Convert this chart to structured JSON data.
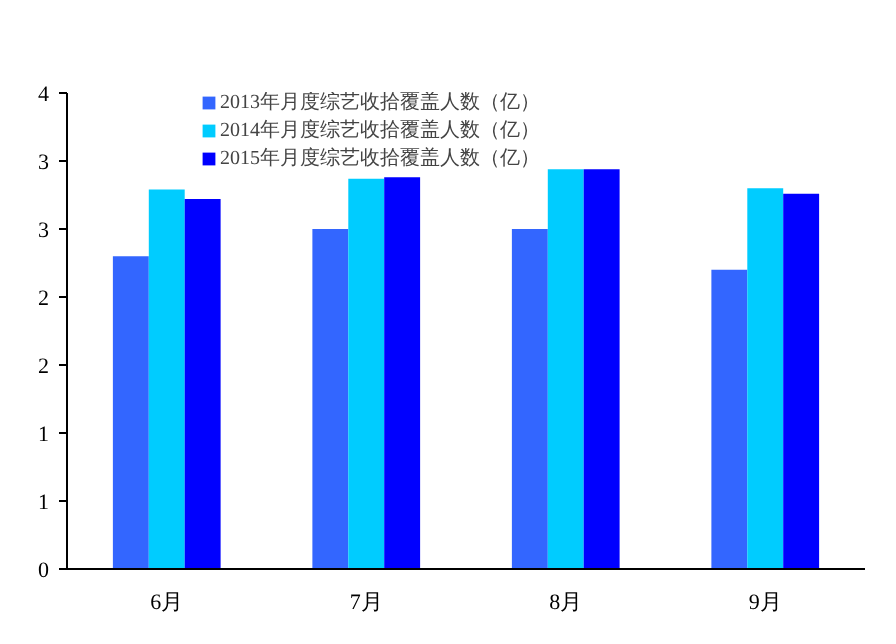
{
  "chart_data": {
    "type": "bar",
    "categories": [
      "6月",
      "7月",
      "8月",
      "9月"
    ],
    "series": [
      {
        "name": "2013年月度综艺收拾覆盖人数（亿）",
        "color": "#3366ff",
        "values": [
          2.3,
          2.5,
          2.5,
          2.2
        ]
      },
      {
        "name": "2014年月度综艺收拾覆盖人数（亿）",
        "color": "#00ccff",
        "values": [
          2.79,
          2.87,
          2.94,
          2.8
        ]
      },
      {
        "name": "2015年月度综艺收拾覆盖人数（亿）",
        "color": "#0000ff",
        "values": [
          2.72,
          2.88,
          2.94,
          2.76
        ]
      }
    ],
    "ylim": [
      0,
      3.5
    ],
    "yticks": [
      0,
      {
        "value": 0.5,
        "label": "1"
      },
      1,
      {
        "value": 1.5,
        "label": "2"
      },
      2,
      {
        "value": 2.5,
        "label": "3"
      },
      3,
      {
        "value": 3.5,
        "label": "4"
      }
    ],
    "grid": false,
    "legend": "top"
  }
}
